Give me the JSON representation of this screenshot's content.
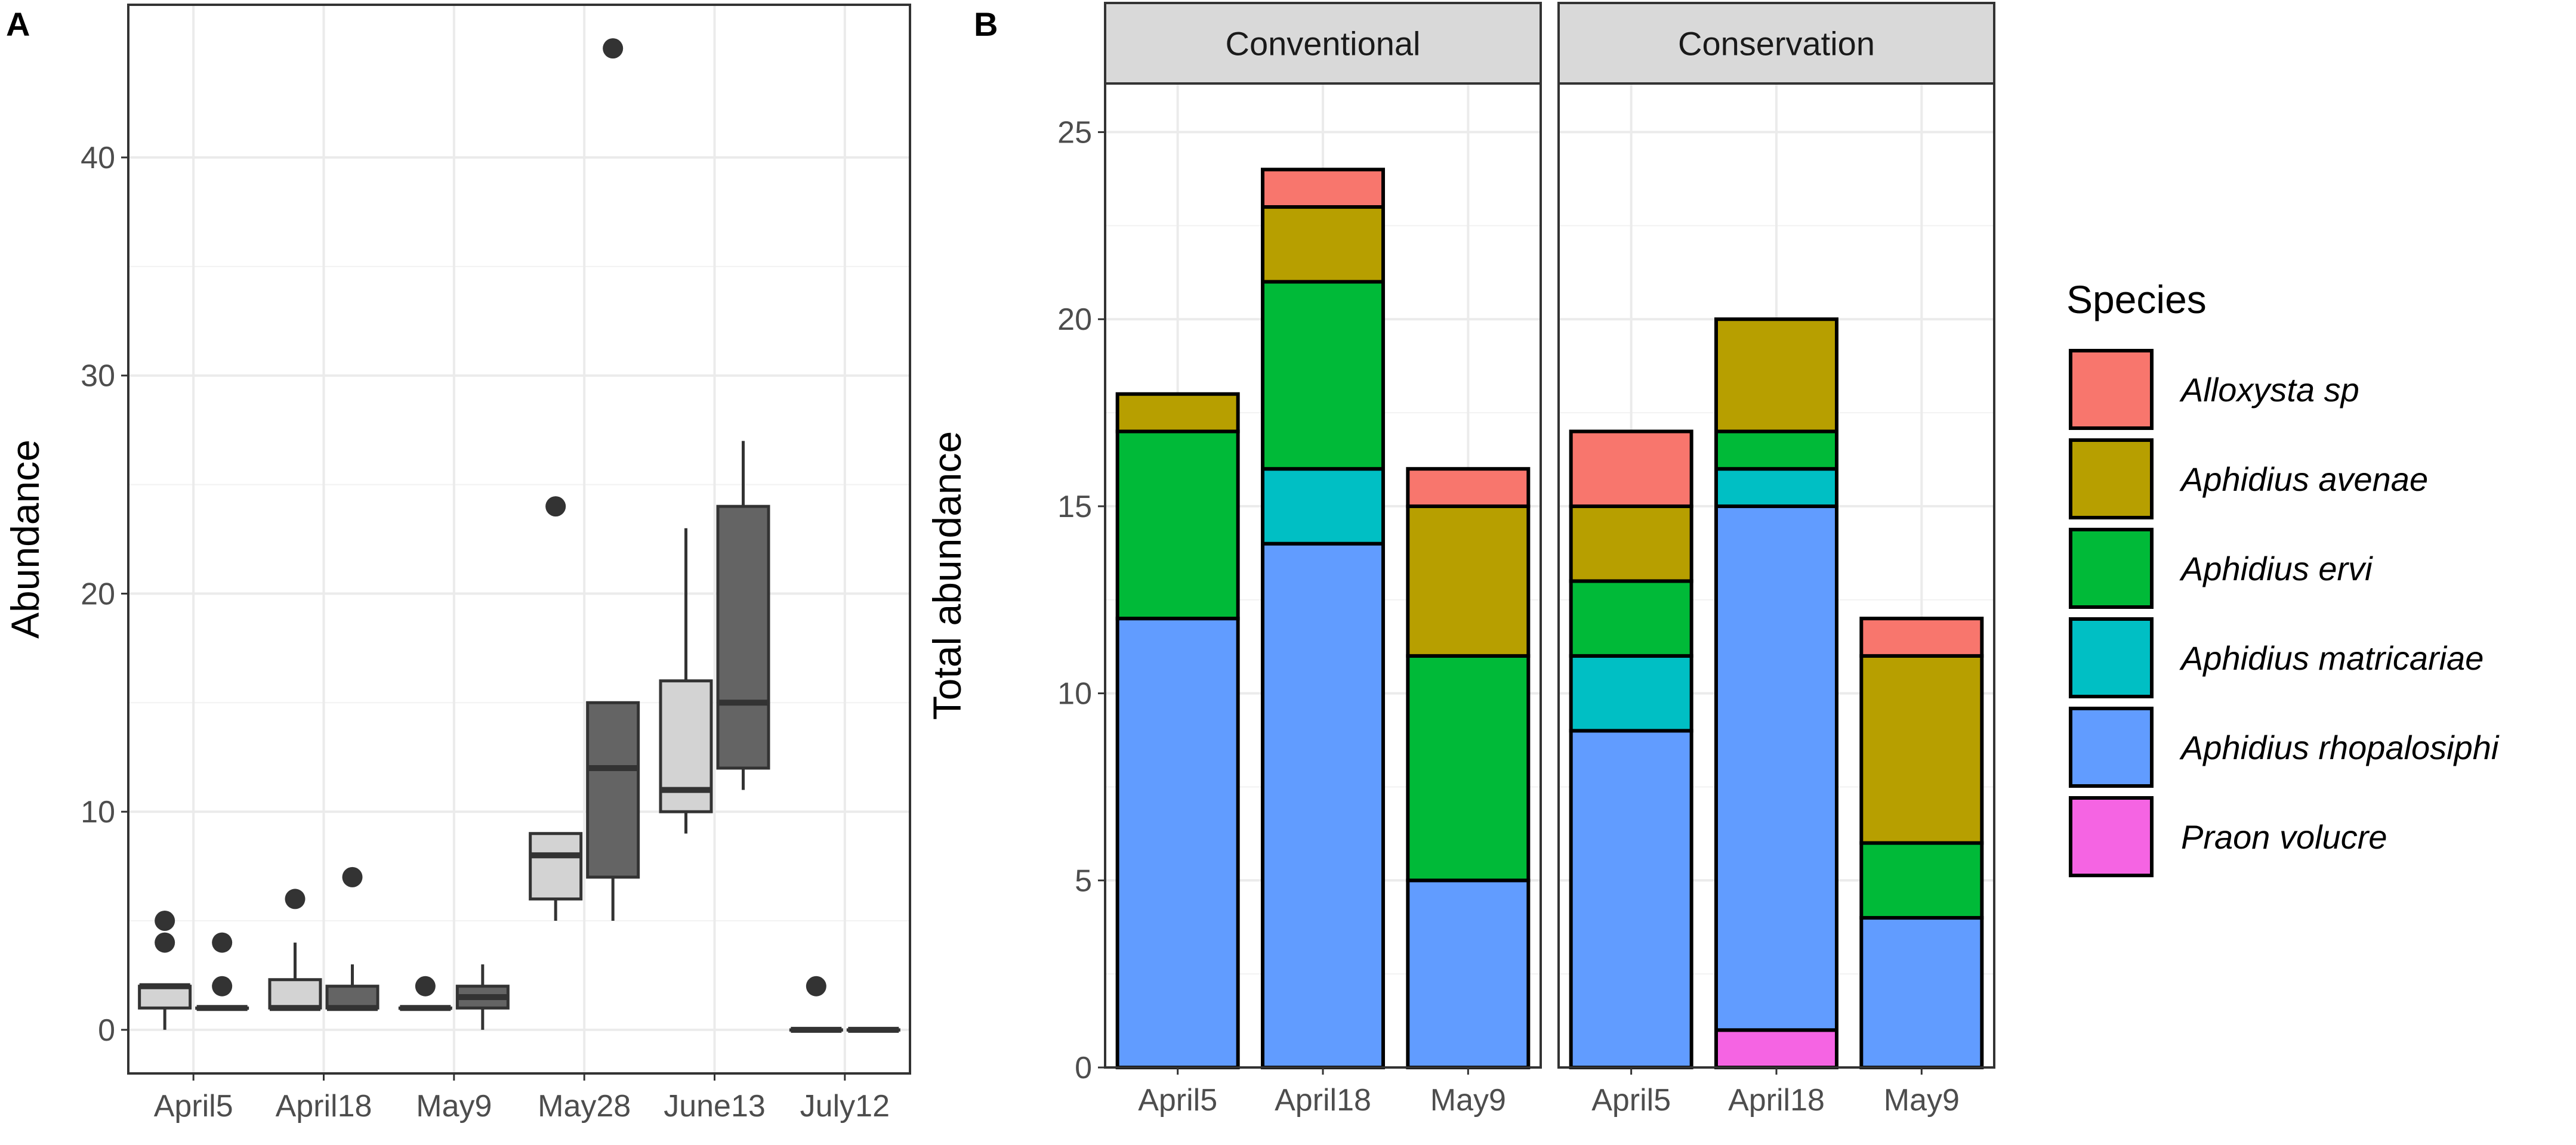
{
  "panel_labels": {
    "a": "A",
    "b": "B"
  },
  "chart_data": [
    {
      "type": "box",
      "panel": "A",
      "ylabel": "Abundance",
      "xlabel": "",
      "ylim": [
        -2,
        47
      ],
      "yticks": [
        0,
        10,
        20,
        30,
        40
      ],
      "ytick_labels": [
        "0",
        "10",
        "20",
        "30",
        "40"
      ],
      "categories": [
        "April5",
        "April18",
        "May9",
        "May28",
        "June13",
        "July12"
      ],
      "groups": [
        "light",
        "dark"
      ],
      "colors": {
        "light": "#d3d3d3",
        "dark": "#646464",
        "line": "#333333"
      },
      "boxes": [
        {
          "category": "April5",
          "group": "light",
          "whisker_low": 0,
          "q1": 1,
          "median": 2,
          "q3": 2,
          "whisker_high": 2,
          "outliers": [
            4,
            5
          ]
        },
        {
          "category": "April5",
          "group": "dark",
          "whisker_low": 1,
          "q1": 1,
          "median": 1,
          "q3": 1,
          "whisker_high": 1,
          "outliers": [
            2,
            4
          ]
        },
        {
          "category": "April18",
          "group": "light",
          "whisker_low": 1,
          "q1": 1,
          "median": 1,
          "q3": 2.3,
          "whisker_high": 4,
          "outliers": [
            6
          ]
        },
        {
          "category": "April18",
          "group": "dark",
          "whisker_low": 1,
          "q1": 1,
          "median": 1,
          "q3": 2,
          "whisker_high": 3,
          "outliers": [
            7
          ]
        },
        {
          "category": "May9",
          "group": "light",
          "whisker_low": 1,
          "q1": 1,
          "median": 1,
          "q3": 1,
          "whisker_high": 1,
          "outliers": [
            2
          ]
        },
        {
          "category": "May9",
          "group": "dark",
          "whisker_low": 0,
          "q1": 1,
          "median": 1.5,
          "q3": 2,
          "whisker_high": 3,
          "outliers": []
        },
        {
          "category": "May28",
          "group": "light",
          "whisker_low": 5,
          "q1": 6,
          "median": 8,
          "q3": 9,
          "whisker_high": 9,
          "outliers": [
            24
          ]
        },
        {
          "category": "May28",
          "group": "dark",
          "whisker_low": 5,
          "q1": 7,
          "median": 12,
          "q3": 15,
          "whisker_high": 15,
          "outliers": [
            45
          ]
        },
        {
          "category": "June13",
          "group": "light",
          "whisker_low": 9,
          "q1": 10,
          "median": 11,
          "q3": 16,
          "whisker_high": 23,
          "outliers": []
        },
        {
          "category": "June13",
          "group": "dark",
          "whisker_low": 11,
          "q1": 12,
          "median": 15,
          "q3": 24,
          "whisker_high": 27,
          "outliers": []
        },
        {
          "category": "July12",
          "group": "light",
          "whisker_low": 0,
          "q1": 0,
          "median": 0,
          "q3": 0,
          "whisker_high": 0,
          "outliers": [
            2
          ]
        },
        {
          "category": "July12",
          "group": "dark",
          "whisker_low": 0,
          "q1": 0,
          "median": 0,
          "q3": 0,
          "whisker_high": 0,
          "outliers": []
        }
      ]
    },
    {
      "type": "stacked_bar",
      "panel": "B",
      "ylabel": "Total abundance",
      "xlabel": "",
      "ylim": [
        0,
        26.3
      ],
      "yticks": [
        0,
        5,
        10,
        15,
        20,
        25
      ],
      "ytick_labels": [
        "0",
        "5",
        "10",
        "15",
        "20",
        "25"
      ],
      "facets": [
        "Conventional",
        "Conservation"
      ],
      "categories": [
        "April5",
        "April18",
        "May9"
      ],
      "legend_title": "Species",
      "species": [
        "Alloxysta sp",
        "Aphidius avenae",
        "Aphidius ervi",
        "Aphidius matricariae",
        "Aphidius rhopalosiphi",
        "Praon volucre"
      ],
      "colors": {
        "Alloxysta sp": "#F8766D",
        "Aphidius avenae": "#B79F00",
        "Aphidius ervi": "#00BA38",
        "Aphidius matricariae": "#00BFC4",
        "Aphidius rhopalosiphi": "#619CFF",
        "Praon volucre": "#F564E3"
      },
      "stack_order_bottom_to_top": [
        "Praon volucre",
        "Aphidius rhopalosiphi",
        "Aphidius matricariae",
        "Aphidius ervi",
        "Aphidius avenae",
        "Alloxysta sp"
      ],
      "series": [
        {
          "name": "Alloxysta sp",
          "values": {
            "Conventional": [
              0,
              1,
              1
            ],
            "Conservation": [
              2,
              0,
              1
            ]
          }
        },
        {
          "name": "Aphidius avenae",
          "values": {
            "Conventional": [
              1,
              2,
              4
            ],
            "Conservation": [
              2,
              3,
              5
            ]
          }
        },
        {
          "name": "Aphidius ervi",
          "values": {
            "Conventional": [
              5,
              5,
              6
            ],
            "Conservation": [
              2,
              1,
              2
            ]
          }
        },
        {
          "name": "Aphidius matricariae",
          "values": {
            "Conventional": [
              0,
              2,
              0
            ],
            "Conservation": [
              2,
              1,
              0
            ]
          }
        },
        {
          "name": "Aphidius rhopalosiphi",
          "values": {
            "Conventional": [
              12,
              14,
              5
            ],
            "Conservation": [
              9,
              14,
              4
            ]
          }
        },
        {
          "name": "Praon volucre",
          "values": {
            "Conventional": [
              0,
              0,
              0
            ],
            "Conservation": [
              0,
              1,
              0
            ]
          }
        }
      ]
    }
  ]
}
